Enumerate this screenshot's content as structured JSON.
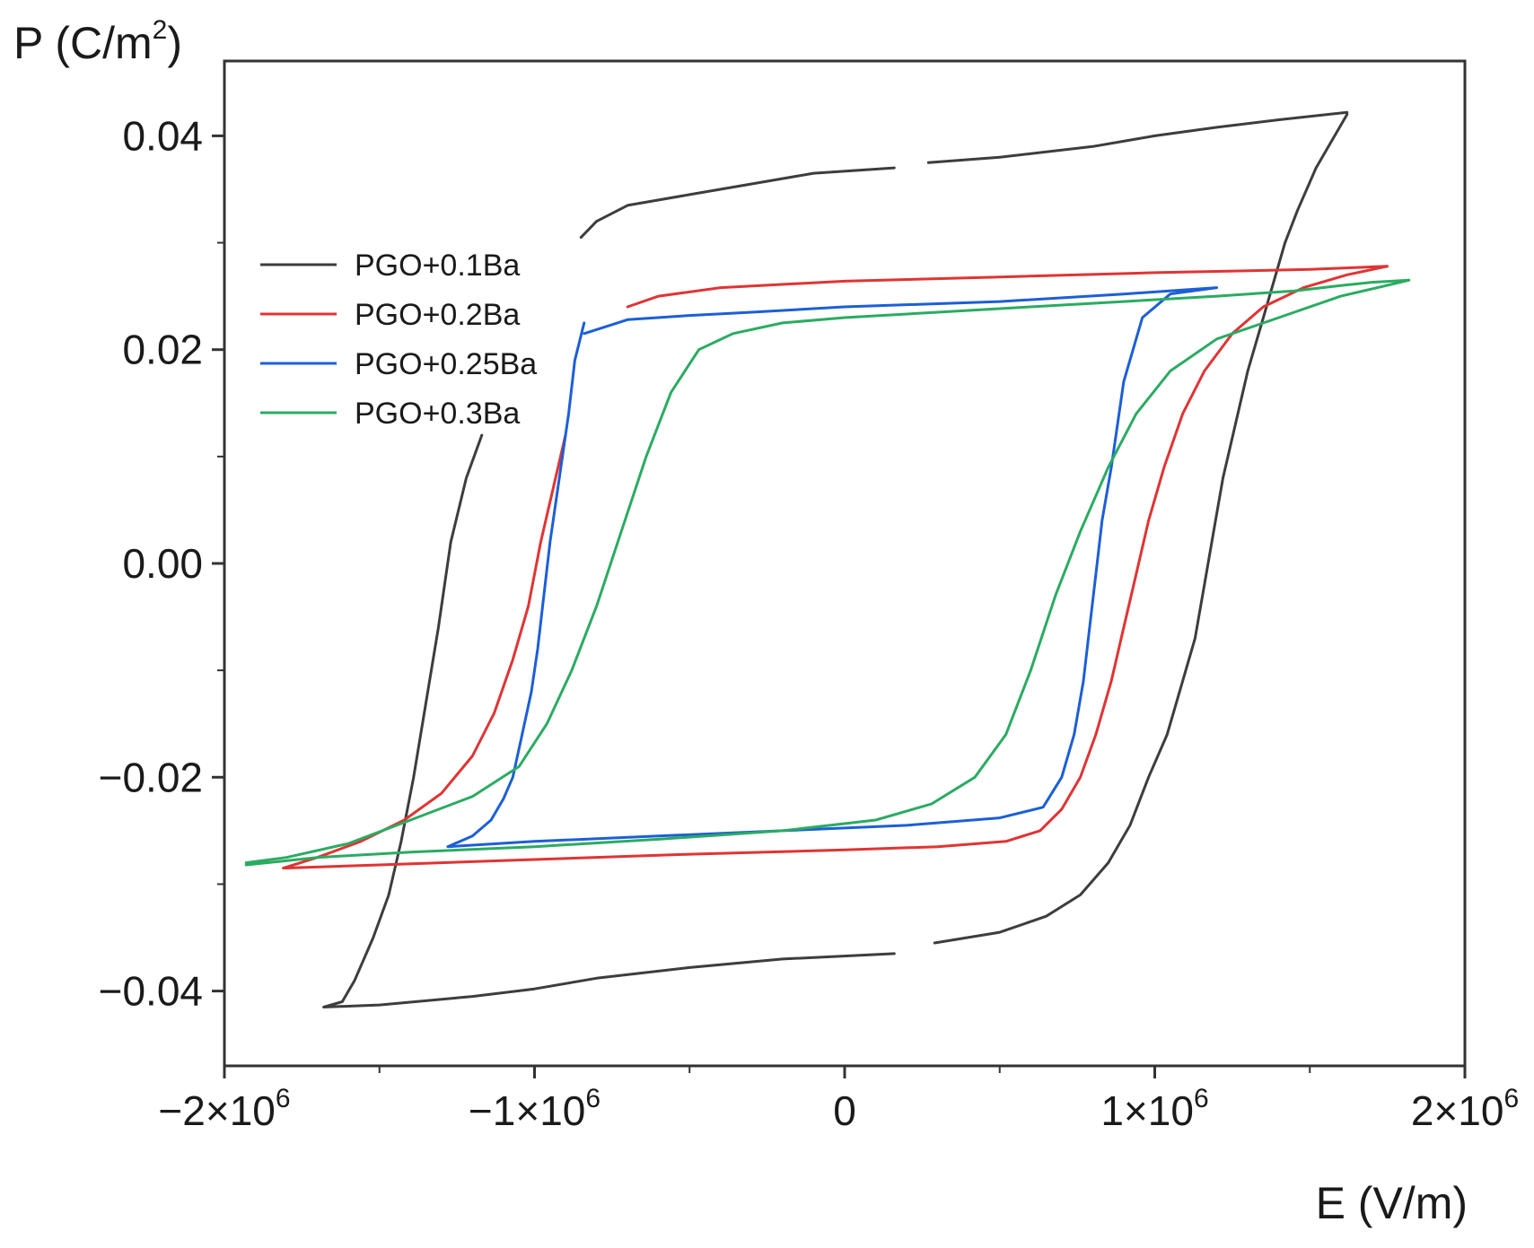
{
  "chart_data": {
    "type": "line",
    "title": "",
    "xlabel": "E (V/m)",
    "ylabel": "P (C/m",
    "ylabel_sup": "2",
    "ylabel_close": ")",
    "xlim": [
      -2000000,
      2000000
    ],
    "ylim": [
      -0.047,
      0.047
    ],
    "xticks": [
      {
        "value": -2000000,
        "label": "−2×10",
        "sup": "6"
      },
      {
        "value": -1000000,
        "label": "−1×10",
        "sup": "6"
      },
      {
        "value": 0,
        "label": "0",
        "sup": ""
      },
      {
        "value": 1000000,
        "label": "1×10",
        "sup": "6"
      },
      {
        "value": 2000000,
        "label": "2×10",
        "sup": "6"
      }
    ],
    "yticks": [
      {
        "value": 0.04,
        "label": "0.04"
      },
      {
        "value": 0.02,
        "label": "0.02"
      },
      {
        "value": 0.0,
        "label": "0.00"
      },
      {
        "value": -0.02,
        "label": "−0.02"
      },
      {
        "value": -0.04,
        "label": "−0.04"
      }
    ],
    "legend_position": "upper-left",
    "series": [
      {
        "name": "PGO+0.1Ba",
        "color": "#3d3d3d",
        "segments": [
          [
            [
              -1170000,
              0.012
            ],
            [
              -1220000,
              0.008
            ],
            [
              -1270000,
              0.002
            ],
            [
              -1310000,
              -0.006
            ],
            [
              -1350000,
              -0.013
            ],
            [
              -1390000,
              -0.02
            ],
            [
              -1430000,
              -0.026
            ],
            [
              -1470000,
              -0.031
            ],
            [
              -1520000,
              -0.035
            ],
            [
              -1580000,
              -0.039
            ],
            [
              -1620000,
              -0.041
            ],
            [
              -1680000,
              -0.0415
            ],
            [
              -1500000,
              -0.0413
            ],
            [
              -1200000,
              -0.0405
            ],
            [
              -1000000,
              -0.0398
            ],
            [
              -800000,
              -0.0388
            ],
            [
              -500000,
              -0.0378
            ],
            [
              -200000,
              -0.037
            ],
            [
              160000,
              -0.0365
            ]
          ],
          [
            [
              290000,
              -0.0355
            ],
            [
              500000,
              -0.0345
            ],
            [
              650000,
              -0.033
            ],
            [
              760000,
              -0.031
            ],
            [
              850000,
              -0.028
            ],
            [
              920000,
              -0.0245
            ],
            [
              980000,
              -0.02
            ],
            [
              1040000,
              -0.016
            ],
            [
              1090000,
              -0.011
            ],
            [
              1130000,
              -0.007
            ],
            [
              1160000,
              -0.002
            ],
            [
              1190000,
              0.003
            ],
            [
              1220000,
              0.008
            ],
            [
              1260000,
              0.013
            ],
            [
              1300000,
              0.018
            ],
            [
              1340000,
              0.022
            ],
            [
              1380000,
              0.026
            ],
            [
              1420000,
              0.03
            ],
            [
              1460000,
              0.033
            ],
            [
              1520000,
              0.037
            ],
            [
              1580000,
              0.04
            ],
            [
              1620000,
              0.042
            ]
          ],
          [
            [
              1620000,
              0.0422
            ],
            [
              1400000,
              0.0415
            ],
            [
              1200000,
              0.0408
            ],
            [
              1000000,
              0.04
            ],
            [
              800000,
              0.039
            ],
            [
              500000,
              0.038
            ],
            [
              270000,
              0.0375
            ]
          ],
          [
            [
              160000,
              0.037
            ],
            [
              -100000,
              0.0365
            ],
            [
              -300000,
              0.0355
            ],
            [
              -500000,
              0.0345
            ],
            [
              -700000,
              0.0335
            ],
            [
              -800000,
              0.032
            ],
            [
              -850000,
              0.0305
            ]
          ]
        ]
      },
      {
        "name": "PGO+0.2Ba",
        "color": "#e03434",
        "segments": [
          [
            [
              -900000,
              0.012
            ],
            [
              -940000,
              0.007
            ],
            [
              -980000,
              0.002
            ],
            [
              -1020000,
              -0.004
            ],
            [
              -1070000,
              -0.009
            ],
            [
              -1130000,
              -0.014
            ],
            [
              -1200000,
              -0.018
            ],
            [
              -1300000,
              -0.0215
            ],
            [
              -1420000,
              -0.024
            ],
            [
              -1560000,
              -0.026
            ],
            [
              -1700000,
              -0.0275
            ],
            [
              -1810000,
              -0.0285
            ],
            [
              -1500000,
              -0.0282
            ],
            [
              -1000000,
              -0.0277
            ],
            [
              -500000,
              -0.0272
            ],
            [
              0,
              -0.0268
            ],
            [
              300000,
              -0.0265
            ],
            [
              520000,
              -0.026
            ],
            [
              630000,
              -0.025
            ],
            [
              700000,
              -0.023
            ],
            [
              760000,
              -0.02
            ],
            [
              810000,
              -0.016
            ],
            [
              860000,
              -0.011
            ],
            [
              900000,
              -0.006
            ],
            [
              940000,
              -0.001
            ],
            [
              980000,
              0.004
            ],
            [
              1030000,
              0.009
            ],
            [
              1090000,
              0.014
            ],
            [
              1160000,
              0.018
            ],
            [
              1250000,
              0.0215
            ],
            [
              1350000,
              0.024
            ],
            [
              1480000,
              0.0258
            ],
            [
              1620000,
              0.027
            ],
            [
              1750000,
              0.0278
            ],
            [
              1500000,
              0.0275
            ],
            [
              1000000,
              0.0272
            ],
            [
              500000,
              0.0268
            ],
            [
              0,
              0.0264
            ],
            [
              -400000,
              0.0258
            ],
            [
              -600000,
              0.025
            ],
            [
              -700000,
              0.024
            ]
          ]
        ]
      },
      {
        "name": "PGO+0.25Ba",
        "color": "#1c5fd6",
        "segments": [
          [
            [
              -840000,
              0.0225
            ],
            [
              -870000,
              0.019
            ],
            [
              -890000,
              0.014
            ],
            [
              -910000,
              0.01
            ],
            [
              -930000,
              0.006
            ],
            [
              -950000,
              0.002
            ],
            [
              -970000,
              -0.003
            ],
            [
              -990000,
              -0.008
            ],
            [
              -1010000,
              -0.012
            ],
            [
              -1040000,
              -0.016
            ],
            [
              -1070000,
              -0.02
            ],
            [
              -1100000,
              -0.022
            ],
            [
              -1140000,
              -0.024
            ],
            [
              -1200000,
              -0.0255
            ],
            [
              -1280000,
              -0.0265
            ],
            [
              -1000000,
              -0.026
            ],
            [
              -600000,
              -0.0255
            ],
            [
              -200000,
              -0.025
            ],
            [
              200000,
              -0.0245
            ],
            [
              500000,
              -0.0238
            ],
            [
              640000,
              -0.0228
            ],
            [
              700000,
              -0.02
            ],
            [
              740000,
              -0.016
            ],
            [
              770000,
              -0.011
            ],
            [
              790000,
              -0.006
            ],
            [
              810000,
              -0.001
            ],
            [
              830000,
              0.004
            ],
            [
              860000,
              0.009
            ],
            [
              880000,
              0.013
            ],
            [
              900000,
              0.017
            ],
            [
              930000,
              0.02
            ],
            [
              960000,
              0.023
            ],
            [
              1050000,
              0.0252
            ],
            [
              1200000,
              0.0258
            ],
            [
              900000,
              0.0252
            ],
            [
              500000,
              0.0245
            ],
            [
              0,
              0.024
            ],
            [
              -300000,
              0.0235
            ],
            [
              -500000,
              0.0232
            ],
            [
              -700000,
              0.0228
            ],
            [
              -840000,
              0.0215
            ]
          ]
        ]
      },
      {
        "name": "PGO+0.3Ba",
        "color": "#2bab62",
        "segments": [
          [
            [
              -1930000,
              -0.028
            ],
            [
              -1800000,
              -0.0275
            ],
            [
              -1600000,
              -0.0262
            ],
            [
              -1400000,
              -0.024
            ],
            [
              -1200000,
              -0.0218
            ],
            [
              -1050000,
              -0.019
            ],
            [
              -960000,
              -0.015
            ],
            [
              -880000,
              -0.01
            ],
            [
              -800000,
              -0.004
            ],
            [
              -720000,
              0.003
            ],
            [
              -640000,
              0.01
            ],
            [
              -560000,
              0.016
            ],
            [
              -470000,
              0.02
            ],
            [
              -360000,
              0.0215
            ],
            [
              -200000,
              0.0225
            ],
            [
              0,
              0.023
            ],
            [
              300000,
              0.0235
            ],
            [
              600000,
              0.024
            ],
            [
              900000,
              0.0245
            ],
            [
              1200000,
              0.025
            ],
            [
              1450000,
              0.0255
            ],
            [
              1600000,
              0.026
            ],
            [
              1700000,
              0.0263
            ],
            [
              1820000,
              0.0265
            ],
            [
              1600000,
              0.025
            ],
            [
              1400000,
              0.023
            ],
            [
              1200000,
              0.021
            ],
            [
              1050000,
              0.018
            ],
            [
              940000,
              0.014
            ],
            [
              850000,
              0.009
            ],
            [
              760000,
              0.003
            ],
            [
              680000,
              -0.003
            ],
            [
              600000,
              -0.01
            ],
            [
              520000,
              -0.016
            ],
            [
              420000,
              -0.02
            ],
            [
              280000,
              -0.0225
            ],
            [
              100000,
              -0.024
            ],
            [
              -200000,
              -0.025
            ],
            [
              -600000,
              -0.0258
            ],
            [
              -1000000,
              -0.0265
            ],
            [
              -1400000,
              -0.027
            ],
            [
              -1700000,
              -0.0275
            ],
            [
              -1930000,
              -0.0282
            ]
          ]
        ]
      }
    ]
  }
}
